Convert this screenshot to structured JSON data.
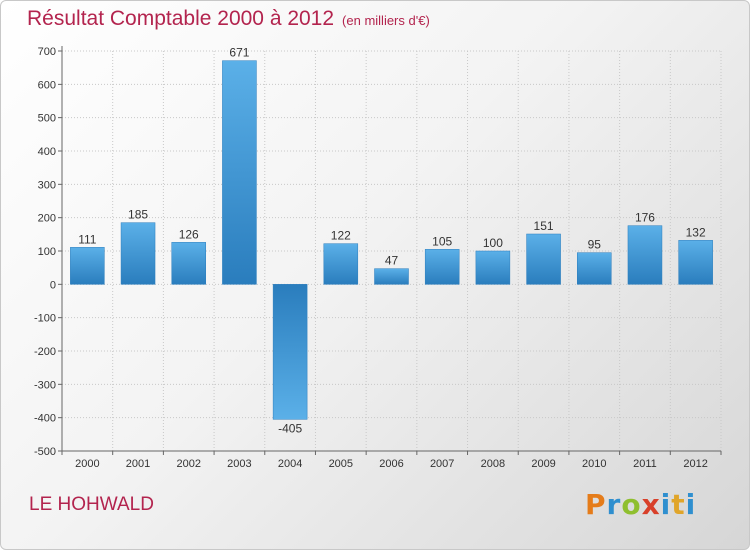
{
  "title": "Résultat Comptable 2000 à 2012",
  "subtitle": "(en milliers d'€)",
  "place": "LE HOHWALD",
  "logo": {
    "text": "Proxiti",
    "colors": [
      "#e57c1a",
      "#2f8fcf",
      "#8fbf2f",
      "#d8402a",
      "#2f8fcf",
      "#e0a52a",
      "#2f8fcf"
    ]
  },
  "colors": {
    "accent": "#b3244e",
    "bar_light": "#5bb0e8",
    "bar_dark": "#2a7dbd"
  },
  "chart_data": {
    "type": "bar",
    "categories": [
      "2000",
      "2001",
      "2002",
      "2003",
      "2004",
      "2005",
      "2006",
      "2007",
      "2008",
      "2009",
      "2010",
      "2011",
      "2012"
    ],
    "values": [
      111,
      185,
      126,
      671,
      -405,
      122,
      47,
      105,
      100,
      151,
      95,
      176,
      132
    ],
    "value_labels": [
      "111",
      "185",
      "126",
      "671",
      "-405",
      "122",
      "47",
      "105",
      "100",
      "151",
      "95",
      "176",
      "132"
    ],
    "ylim": [
      -500,
      700
    ],
    "yticks": [
      700,
      600,
      500,
      400,
      300,
      200,
      100,
      0,
      -100,
      -200,
      -300,
      -400,
      -500
    ],
    "grid": true,
    "title": "Résultat Comptable 2000 à 2012",
    "subtitle": "(en milliers d'€)"
  }
}
